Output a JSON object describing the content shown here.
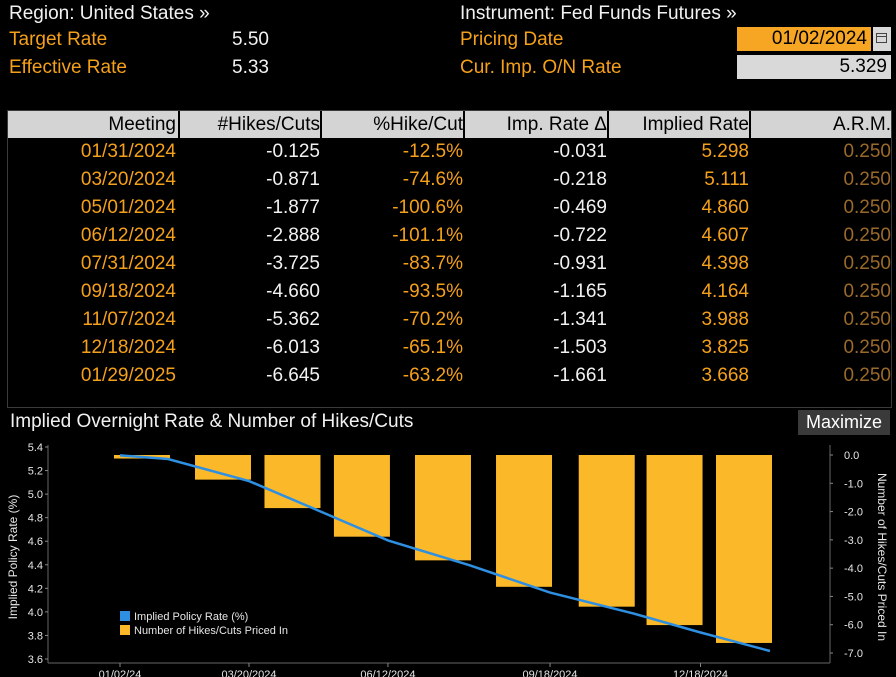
{
  "header": {
    "region_label": "Region: United States »",
    "instrument_label": "Instrument: Fed Funds Futures »",
    "target_rate_label": "Target Rate",
    "target_rate_value": "5.50",
    "effective_rate_label": "Effective Rate",
    "effective_rate_value": "5.33",
    "pricing_date_label": "Pricing Date",
    "pricing_date_value": "01/02/2024",
    "cur_imp_label": "Cur. Imp. O/N Rate",
    "cur_imp_value": "5.329"
  },
  "table": {
    "columns": [
      "Meeting",
      "#Hikes/Cuts",
      "%Hike/Cut",
      "Imp. Rate Δ",
      "Implied Rate",
      "A.R.M."
    ],
    "rows": [
      [
        "01/31/2024",
        "-0.125",
        "-12.5%",
        "-0.031",
        "5.298",
        "0.250"
      ],
      [
        "03/20/2024",
        "-0.871",
        "-74.6%",
        "-0.218",
        "5.111",
        "0.250"
      ],
      [
        "05/01/2024",
        "-1.877",
        "-100.6%",
        "-0.469",
        "4.860",
        "0.250"
      ],
      [
        "06/12/2024",
        "-2.888",
        "-101.1%",
        "-0.722",
        "4.607",
        "0.250"
      ],
      [
        "07/31/2024",
        "-3.725",
        "-83.7%",
        "-0.931",
        "4.398",
        "0.250"
      ],
      [
        "09/18/2024",
        "-4.660",
        "-93.5%",
        "-1.165",
        "4.164",
        "0.250"
      ],
      [
        "11/07/2024",
        "-5.362",
        "-70.2%",
        "-1.341",
        "3.988",
        "0.250"
      ],
      [
        "12/18/2024",
        "-6.013",
        "-65.1%",
        "-1.503",
        "3.825",
        "0.250"
      ],
      [
        "01/29/2025",
        "-6.645",
        "-63.2%",
        "-1.661",
        "3.668",
        "0.250"
      ]
    ]
  },
  "chart": {
    "title": "Implied Overnight Rate & Number of Hikes/Cuts",
    "maximize_label": "Maximize"
  },
  "colors": {
    "accent_orange": "#f5a01a",
    "bar_fill": "#fbb829",
    "line_blue": "#2f8fe0",
    "header_bg": "#d4d4d4"
  },
  "chart_data": {
    "type": "bar",
    "x_tick_labels": [
      "01/02/24",
      "03/20/2024",
      "06/12/2024",
      "09/18/2024",
      "12/18/2024"
    ],
    "categories": [
      "01/31/2024",
      "03/20/2024",
      "05/01/2024",
      "06/12/2024",
      "07/31/2024",
      "09/18/2024",
      "11/07/2024",
      "12/18/2024",
      "01/29/2025"
    ],
    "series": [
      {
        "name": "Implied Policy Rate (%)",
        "type": "line",
        "axis": "left",
        "x": [
          "01/02/24",
          "01/31/2024",
          "03/20/2024",
          "05/01/2024",
          "06/12/2024",
          "07/31/2024",
          "09/18/2024",
          "11/07/2024",
          "12/18/2024",
          "01/29/2025"
        ],
        "values": [
          5.329,
          5.298,
          5.111,
          4.86,
          4.607,
          4.398,
          4.164,
          3.988,
          3.825,
          3.668
        ]
      },
      {
        "name": "Number of Hikes/Cuts Priced In",
        "type": "bar",
        "axis": "right",
        "values": [
          -0.125,
          -0.871,
          -1.877,
          -2.888,
          -3.725,
          -4.66,
          -5.362,
          -6.013,
          -6.645
        ]
      }
    ],
    "ylabel": "Implied Policy Rate (%)",
    "y2label": "Number of Hikes/Cuts Priced In",
    "ylim": [
      3.6,
      5.4
    ],
    "yticks": [
      "5.4",
      "5.2",
      "5.0",
      "4.8",
      "4.6",
      "4.4",
      "4.2",
      "4.0",
      "3.8",
      "3.6"
    ],
    "y2lim": [
      -7.0,
      0.0
    ],
    "y2ticks": [
      "0.0",
      "-1.0",
      "-2.0",
      "-3.0",
      "-4.0",
      "-5.0",
      "-6.0",
      "-7.0"
    ],
    "legend": "bottom-left"
  }
}
